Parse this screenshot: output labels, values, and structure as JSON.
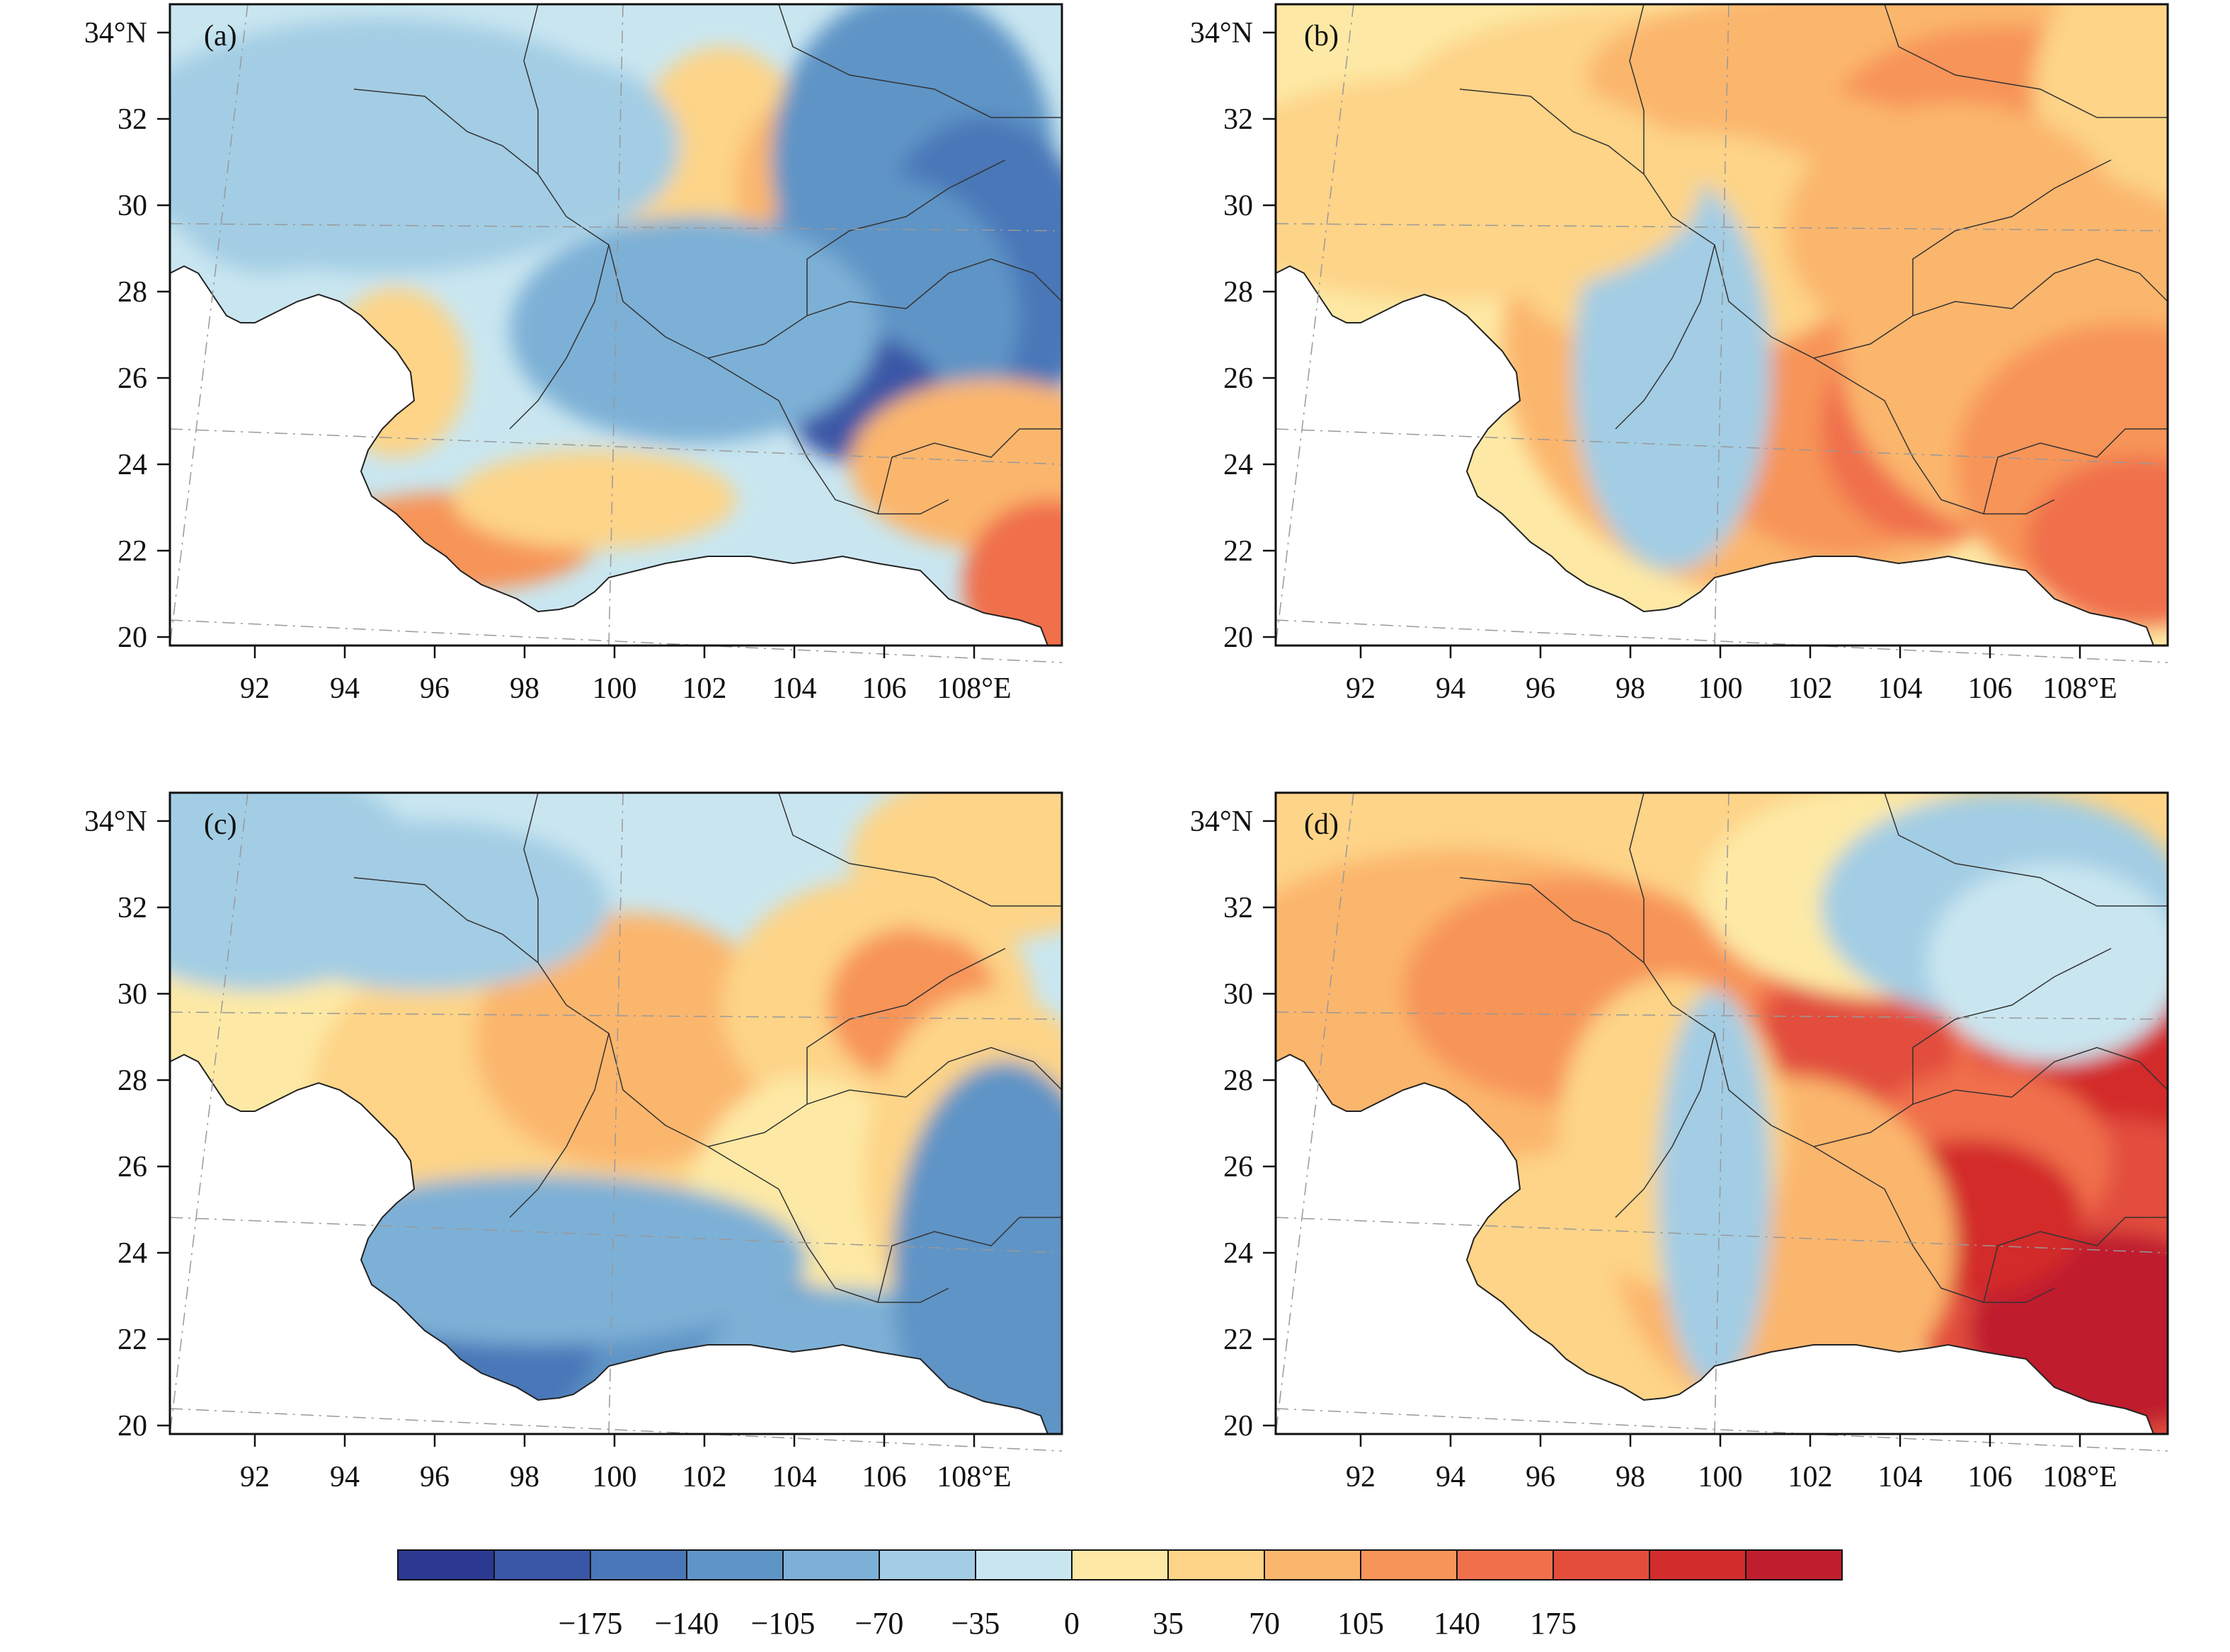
{
  "panels": [
    {
      "label": "(a)",
      "pattern": "a"
    },
    {
      "label": "(b)",
      "pattern": "b"
    },
    {
      "label": "(c)",
      "pattern": "c"
    },
    {
      "label": "(d)",
      "pattern": "d"
    }
  ],
  "axes": {
    "lat_ticks": [
      "34°N",
      "32",
      "30",
      "28",
      "26",
      "24",
      "22",
      "20"
    ],
    "lon_ticks": [
      "92",
      "94",
      "96",
      "98",
      "100",
      "102",
      "104",
      "106",
      "108°E"
    ]
  },
  "colorbar": {
    "colors": [
      "#2b3990",
      "#3a56a6",
      "#4a77b8",
      "#5f94c6",
      "#7db0d6",
      "#a3cde4",
      "#c9e6f0",
      "#fde9a5",
      "#fdd488",
      "#fbb66d",
      "#f79459",
      "#f0704c",
      "#e24d3c",
      "#d32c2c",
      "#bf1e2d"
    ],
    "tick_labels": [
      "−175",
      "−140",
      "−105",
      "−70",
      "−35",
      "0",
      "35",
      "70",
      "105",
      "140",
      "175"
    ]
  }
}
